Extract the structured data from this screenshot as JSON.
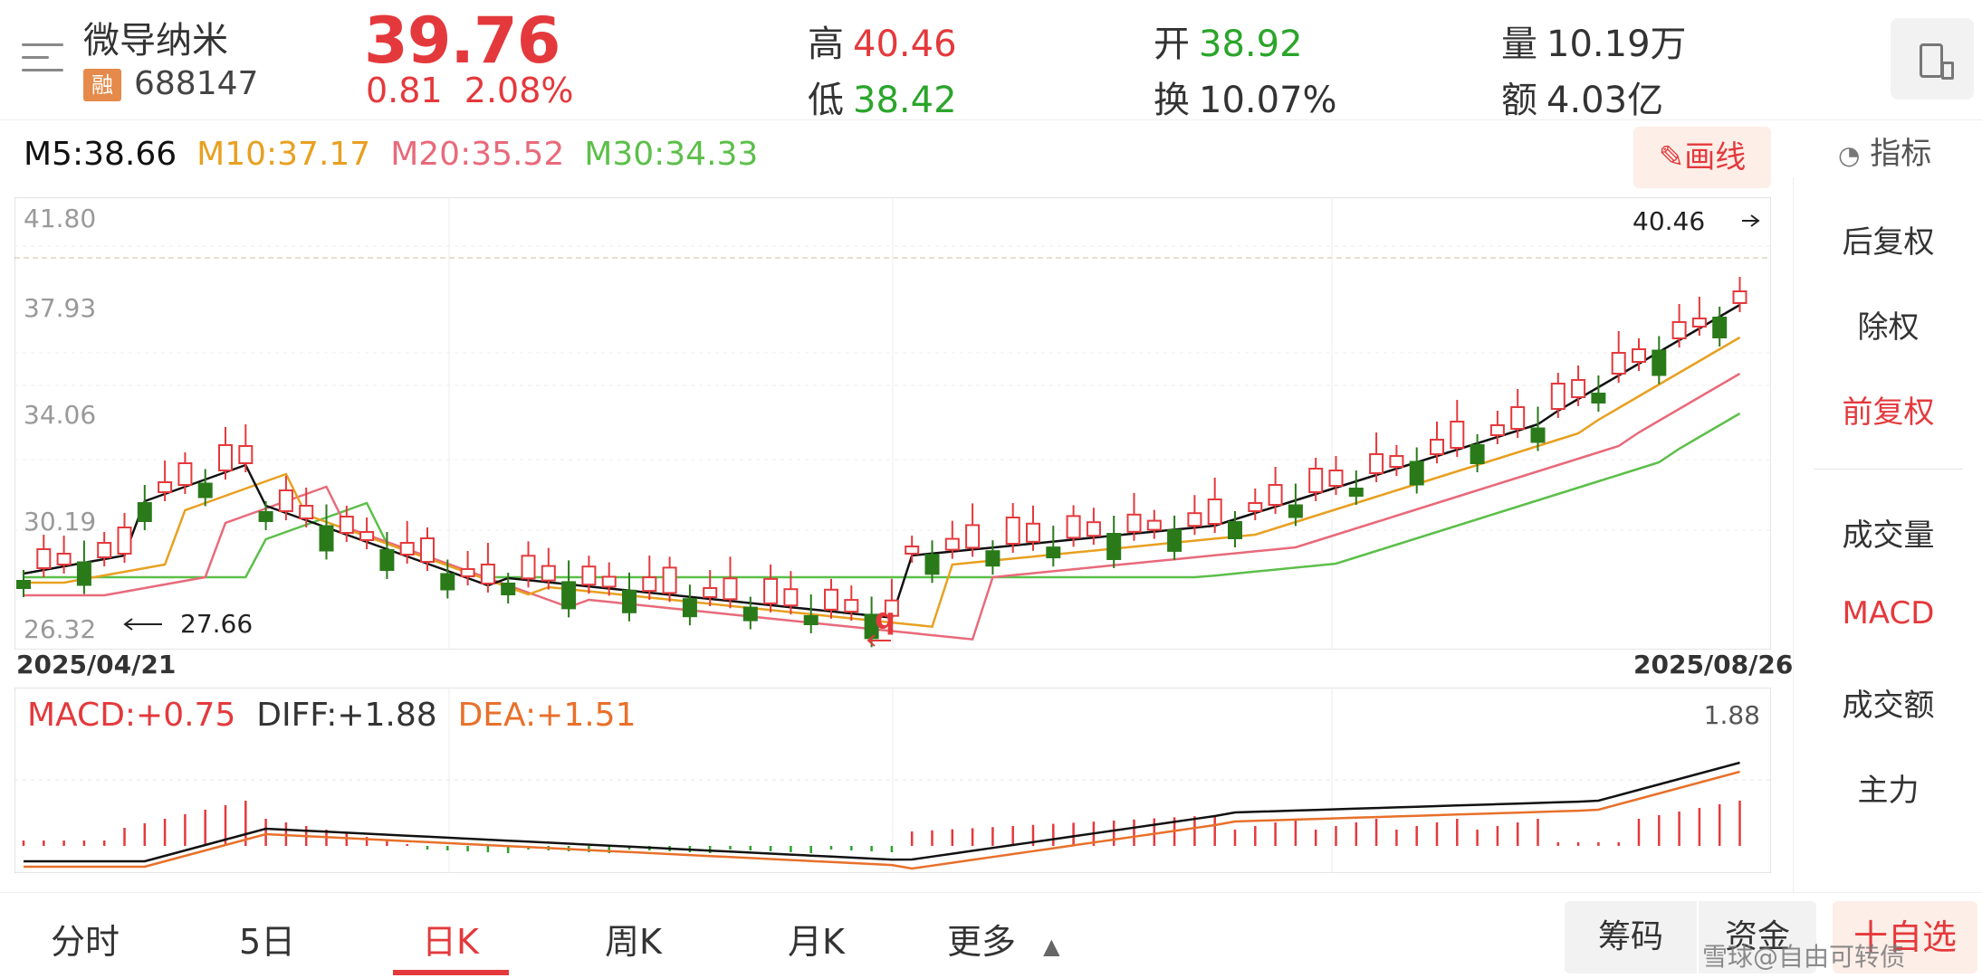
{
  "header": {
    "stock_name": "微导纳米",
    "badge": "融",
    "stock_code": "688147",
    "price": "39.76",
    "change": "0.81",
    "change_pct": "2.08%",
    "high_label": "高",
    "high": "40.46",
    "low_label": "低",
    "low": "38.42",
    "open_label": "开",
    "open": "38.92",
    "turnover_label": "换",
    "turnover": "10.07%",
    "volume_label": "量",
    "volume": "10.19万",
    "amount_label": "额",
    "amount": "4.03亿"
  },
  "ma": {
    "m5": "M5:38.66",
    "m10": "M10:37.17",
    "m20": "M20:35.52",
    "m30": "M30:34.33"
  },
  "toolbar": {
    "draw_label": "画线",
    "indicator_label": "指标"
  },
  "right_panel": {
    "items": [
      "后复权",
      "除权",
      "前复权",
      "成交量",
      "MACD",
      "成交额",
      "主力"
    ],
    "active": [
      "前复权",
      "MACD"
    ]
  },
  "kline": {
    "y_ticks": [
      "41.80",
      "37.93",
      "34.06",
      "30.19",
      "26.32"
    ],
    "start_date": "2025/04/21",
    "end_date": "2025/08/26",
    "max_label": "40.46",
    "min_label": "27.66",
    "event_marker": "q"
  },
  "macd": {
    "macd": "MACD:+0.75",
    "diff": "DIFF:+1.88",
    "dea": "DEA:+1.51",
    "max_label": "1.88"
  },
  "tabs": [
    "分时",
    "5日",
    "日K",
    "周K",
    "月K",
    "更多"
  ],
  "active_tab": "日K",
  "bottom_buttons": {
    "chips": "筹码",
    "funds": "资金",
    "add_fav": "十自选"
  },
  "watermark": "雪球@自由可转债",
  "colors": {
    "up": "#e4393c",
    "down": "#2a7a1a",
    "m5": "#111111",
    "m10": "#e8a020",
    "m20": "#e86a7a",
    "m30": "#5cbf4a"
  }
}
